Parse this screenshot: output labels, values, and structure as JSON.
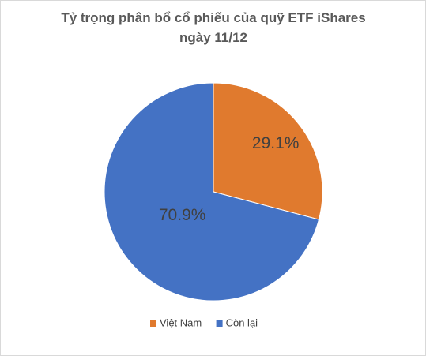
{
  "chart_data": {
    "type": "pie",
    "title": "Tỷ trọng phân bổ cổ phiếu của quỹ ETF iShares ngày 11/12",
    "categories": [
      "Việt Nam",
      "Còn lại"
    ],
    "values": [
      29.1,
      70.9
    ],
    "value_labels": [
      "29.1%",
      "70.9%"
    ],
    "colors": [
      "#e07a2e",
      "#4472c4"
    ],
    "legend": "bottom"
  }
}
